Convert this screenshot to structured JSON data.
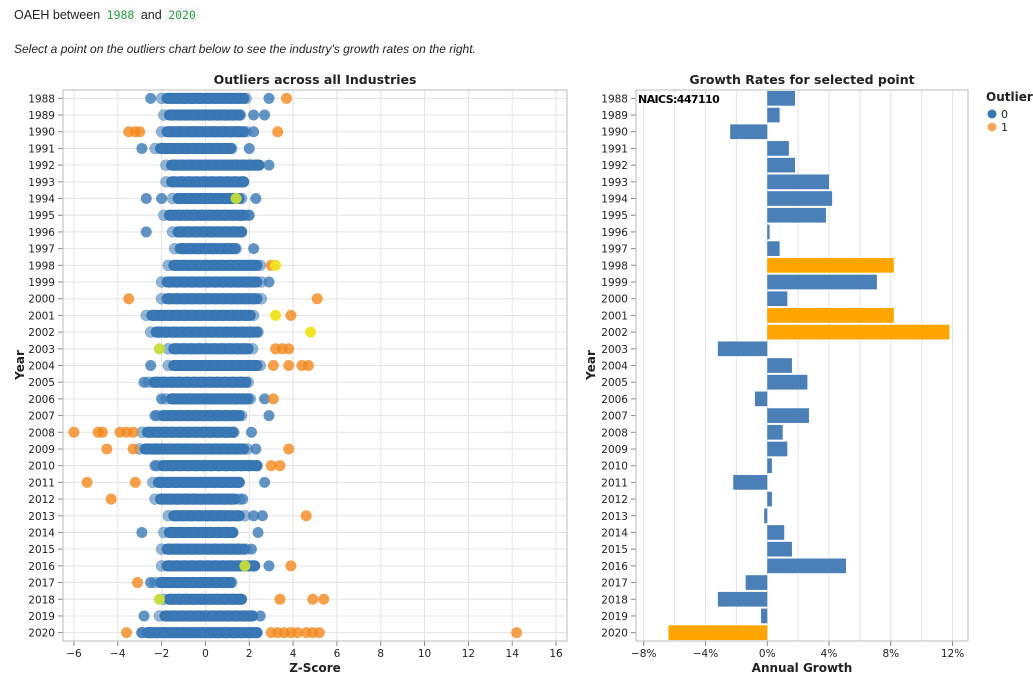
{
  "header": {
    "prefix": "OAEH between",
    "start_year": "1988",
    "joiner": "and",
    "end_year": "2020",
    "instruction": "Select a point on the outliers chart below to see the industry's growth rates on the right."
  },
  "colors": {
    "blue": "#3a78b5",
    "orange": "#f58518",
    "light_orange": "#f8a65a",
    "yellow": "#f2e21c",
    "lime": "#c6dd3a",
    "bar_blue": "#4a7fb8",
    "bar_orange": "#ffa500",
    "grid": "#e3e3e3"
  },
  "chart_data": [
    {
      "type": "scatter",
      "title": "Outliers across all Industries",
      "xlabel": "Z-Score",
      "ylabel": "Year",
      "xlim": [
        -6.5,
        16.5
      ],
      "xticks": [
        -6,
        -4,
        -2,
        0,
        2,
        4,
        6,
        8,
        10,
        12,
        14,
        16
      ],
      "years": [
        "1988",
        "1989",
        "1990",
        "1991",
        "1992",
        "1993",
        "1994",
        "1995",
        "1996",
        "1997",
        "1998",
        "1999",
        "2000",
        "2001",
        "2002",
        "2003",
        "2004",
        "2005",
        "2006",
        "2007",
        "2008",
        "2009",
        "2010",
        "2011",
        "2012",
        "2013",
        "2014",
        "2015",
        "2016",
        "2017",
        "2018",
        "2019",
        "2020"
      ],
      "grid": true,
      "band_ranges": [
        [
          -2.0,
          2.0
        ],
        [
          -1.9,
          1.8
        ],
        [
          -2.0,
          2.0
        ],
        [
          -2.3,
          1.4
        ],
        [
          -1.8,
          2.7
        ],
        [
          -1.8,
          2.0
        ],
        [
          -1.5,
          1.8
        ],
        [
          -1.9,
          2.0
        ],
        [
          -1.5,
          1.9
        ],
        [
          -1.4,
          1.6
        ],
        [
          -1.7,
          2.6
        ],
        [
          -2.0,
          2.6
        ],
        [
          -2.0,
          2.6
        ],
        [
          -2.7,
          2.3
        ],
        [
          -2.5,
          2.6
        ],
        [
          -1.7,
          2.2
        ],
        [
          -1.7,
          2.6
        ],
        [
          -2.6,
          2.1
        ],
        [
          -1.8,
          2.2
        ],
        [
          -2.2,
          1.8
        ],
        [
          -2.9,
          1.5
        ],
        [
          -3.0,
          2.0
        ],
        [
          -2.2,
          2.6
        ],
        [
          -2.4,
          1.8
        ],
        [
          -2.3,
          1.6
        ],
        [
          -1.7,
          1.8
        ],
        [
          -1.9,
          1.5
        ],
        [
          -2.0,
          2.0
        ],
        [
          -2.0,
          2.5
        ],
        [
          -2.3,
          1.4
        ],
        [
          -1.9,
          1.9
        ],
        [
          -2.1,
          2.4
        ],
        [
          -2.9,
          2.6
        ]
      ],
      "points": [
        {
          "year": "1988",
          "z": -2.5,
          "o": 0
        },
        {
          "year": "1988",
          "z": 2.9,
          "o": 0
        },
        {
          "year": "1988",
          "z": 3.7,
          "o": 1
        },
        {
          "year": "1989",
          "z": 2.7,
          "o": 0
        },
        {
          "year": "1989",
          "z": 2.2,
          "o": 0
        },
        {
          "year": "1990",
          "z": -3.5,
          "o": 1
        },
        {
          "year": "1990",
          "z": -3.2,
          "o": 1
        },
        {
          "year": "1990",
          "z": -3.0,
          "o": 1
        },
        {
          "year": "1990",
          "z": 3.3,
          "o": 1
        },
        {
          "year": "1990",
          "z": 2.2,
          "o": 0
        },
        {
          "year": "1991",
          "z": -2.9,
          "o": 0
        },
        {
          "year": "1991",
          "z": 2.0,
          "o": 0
        },
        {
          "year": "1992",
          "z": 2.9,
          "o": 0
        },
        {
          "year": "1994",
          "z": -2.7,
          "o": 0
        },
        {
          "year": "1994",
          "z": -2.0,
          "o": 0
        },
        {
          "year": "1994",
          "z": 2.3,
          "o": 0
        },
        {
          "year": "1994",
          "z": 1.4,
          "o": "lime"
        },
        {
          "year": "1995",
          "z": 2.0,
          "o": 0
        },
        {
          "year": "1996",
          "z": -2.7,
          "o": 0
        },
        {
          "year": "1997",
          "z": 2.2,
          "o": 0
        },
        {
          "year": "1998",
          "z": 3.0,
          "o": 1
        },
        {
          "year": "1998",
          "z": 3.2,
          "o": "yellow"
        },
        {
          "year": "1999",
          "z": 2.9,
          "o": 0
        },
        {
          "year": "2000",
          "z": -3.5,
          "o": 1
        },
        {
          "year": "2000",
          "z": 5.1,
          "o": 1
        },
        {
          "year": "2001",
          "z": 3.2,
          "o": "yellow"
        },
        {
          "year": "2001",
          "z": 3.9,
          "o": 1
        },
        {
          "year": "2002",
          "z": 4.8,
          "o": "yellow"
        },
        {
          "year": "2003",
          "z": -2.1,
          "o": "lime"
        },
        {
          "year": "2003",
          "z": 3.2,
          "o": 1
        },
        {
          "year": "2003",
          "z": 3.5,
          "o": 1
        },
        {
          "year": "2003",
          "z": 3.8,
          "o": 1
        },
        {
          "year": "2004",
          "z": -2.5,
          "o": 0
        },
        {
          "year": "2004",
          "z": 3.1,
          "o": 1
        },
        {
          "year": "2004",
          "z": 3.8,
          "o": 1
        },
        {
          "year": "2004",
          "z": 4.4,
          "o": 1
        },
        {
          "year": "2004",
          "z": 4.7,
          "o": 1
        },
        {
          "year": "2005",
          "z": -2.8,
          "o": 0
        },
        {
          "year": "2006",
          "z": -2.0,
          "o": 0
        },
        {
          "year": "2006",
          "z": 2.7,
          "o": 0
        },
        {
          "year": "2006",
          "z": 3.1,
          "o": 1
        },
        {
          "year": "2007",
          "z": -2.3,
          "o": 0
        },
        {
          "year": "2007",
          "z": 2.9,
          "o": 0
        },
        {
          "year": "2008",
          "z": -6.0,
          "o": 1
        },
        {
          "year": "2008",
          "z": -4.9,
          "o": 1
        },
        {
          "year": "2008",
          "z": -4.7,
          "o": 1
        },
        {
          "year": "2008",
          "z": -3.9,
          "o": 1
        },
        {
          "year": "2008",
          "z": -3.6,
          "o": 1
        },
        {
          "year": "2008",
          "z": -3.3,
          "o": 1
        },
        {
          "year": "2008",
          "z": 2.1,
          "o": 0
        },
        {
          "year": "2009",
          "z": -4.5,
          "o": 1
        },
        {
          "year": "2009",
          "z": -3.3,
          "o": 1
        },
        {
          "year": "2009",
          "z": 2.3,
          "o": 0
        },
        {
          "year": "2009",
          "z": 3.8,
          "o": 1
        },
        {
          "year": "2010",
          "z": -2.3,
          "o": 0
        },
        {
          "year": "2010",
          "z": 3.0,
          "o": 1
        },
        {
          "year": "2010",
          "z": 3.4,
          "o": 1
        },
        {
          "year": "2011",
          "z": -5.4,
          "o": 1
        },
        {
          "year": "2011",
          "z": -3.2,
          "o": 1
        },
        {
          "year": "2011",
          "z": 2.7,
          "o": 0
        },
        {
          "year": "2012",
          "z": -4.3,
          "o": 1
        },
        {
          "year": "2012",
          "z": 1.7,
          "o": 0
        },
        {
          "year": "2013",
          "z": 2.2,
          "o": 0
        },
        {
          "year": "2013",
          "z": 2.6,
          "o": 0
        },
        {
          "year": "2013",
          "z": 4.6,
          "o": 1
        },
        {
          "year": "2014",
          "z": -2.9,
          "o": 0
        },
        {
          "year": "2014",
          "z": 2.4,
          "o": 0
        },
        {
          "year": "2015",
          "z": 2.1,
          "o": 0
        },
        {
          "year": "2016",
          "z": 2.9,
          "o": 0
        },
        {
          "year": "2016",
          "z": 3.9,
          "o": 1
        },
        {
          "year": "2016",
          "z": 1.8,
          "o": "lime"
        },
        {
          "year": "2017",
          "z": -3.1,
          "o": 1
        },
        {
          "year": "2017",
          "z": -2.5,
          "o": 0
        },
        {
          "year": "2018",
          "z": -2.1,
          "o": "lime"
        },
        {
          "year": "2018",
          "z": 3.4,
          "o": 1
        },
        {
          "year": "2018",
          "z": 4.9,
          "o": 1
        },
        {
          "year": "2018",
          "z": 5.4,
          "o": 1
        },
        {
          "year": "2019",
          "z": -2.8,
          "o": 0
        },
        {
          "year": "2019",
          "z": 2.5,
          "o": 0
        },
        {
          "year": "2020",
          "z": -3.6,
          "o": 1
        },
        {
          "year": "2020",
          "z": -2.9,
          "o": 0
        },
        {
          "year": "2020",
          "z": -2.5,
          "o": 0
        },
        {
          "year": "2020",
          "z": 3.0,
          "o": 1
        },
        {
          "year": "2020",
          "z": 3.3,
          "o": 1
        },
        {
          "year": "2020",
          "z": 3.6,
          "o": 1
        },
        {
          "year": "2020",
          "z": 3.9,
          "o": 1
        },
        {
          "year": "2020",
          "z": 4.2,
          "o": 1
        },
        {
          "year": "2020",
          "z": 4.6,
          "o": 1
        },
        {
          "year": "2020",
          "z": 4.9,
          "o": 1
        },
        {
          "year": "2020",
          "z": 5.2,
          "o": 1
        },
        {
          "year": "2020",
          "z": 14.2,
          "o": 1
        }
      ]
    },
    {
      "type": "bar",
      "orientation": "horizontal",
      "title": "Growth Rates for selected point",
      "annotation": "NAICS:447110",
      "xlabel": "Annual Growth",
      "ylabel": "Year",
      "xlim": [
        -8.5,
        13
      ],
      "xticks": [
        -8,
        -4,
        0,
        4,
        8,
        12
      ],
      "xtick_labels": [
        "−8%",
        "−4%",
        "0%",
        "4%",
        "8%",
        "12%"
      ],
      "grid": true,
      "categories": [
        "1988",
        "1989",
        "1990",
        "1991",
        "1992",
        "1993",
        "1994",
        "1995",
        "1996",
        "1997",
        "1998",
        "1999",
        "2000",
        "2001",
        "2002",
        "2003",
        "2004",
        "2005",
        "2006",
        "2007",
        "2008",
        "2009",
        "2010",
        "2011",
        "2012",
        "2013",
        "2014",
        "2015",
        "2016",
        "2017",
        "2018",
        "2019",
        "2020"
      ],
      "values": [
        1.8,
        0.8,
        -2.4,
        1.4,
        1.8,
        4.0,
        4.2,
        3.8,
        0.15,
        0.8,
        8.2,
        7.1,
        1.3,
        8.2,
        11.8,
        -3.2,
        1.6,
        2.6,
        -0.8,
        2.7,
        1.0,
        1.3,
        0.3,
        -2.2,
        0.3,
        -0.2,
        1.1,
        1.6,
        5.1,
        -1.4,
        -3.2,
        -0.4,
        -6.4
      ],
      "outlier": [
        0,
        0,
        0,
        0,
        0,
        0,
        0,
        0,
        0,
        0,
        1,
        0,
        0,
        1,
        1,
        0,
        0,
        0,
        0,
        0,
        0,
        0,
        0,
        0,
        0,
        0,
        0,
        0,
        0,
        0,
        0,
        0,
        1
      ],
      "legend": {
        "title": "Outlier",
        "placement": "right",
        "entries": [
          {
            "label": "0",
            "color": "#3a78b5"
          },
          {
            "label": "1",
            "color": "#f8a65a"
          }
        ]
      }
    }
  ]
}
